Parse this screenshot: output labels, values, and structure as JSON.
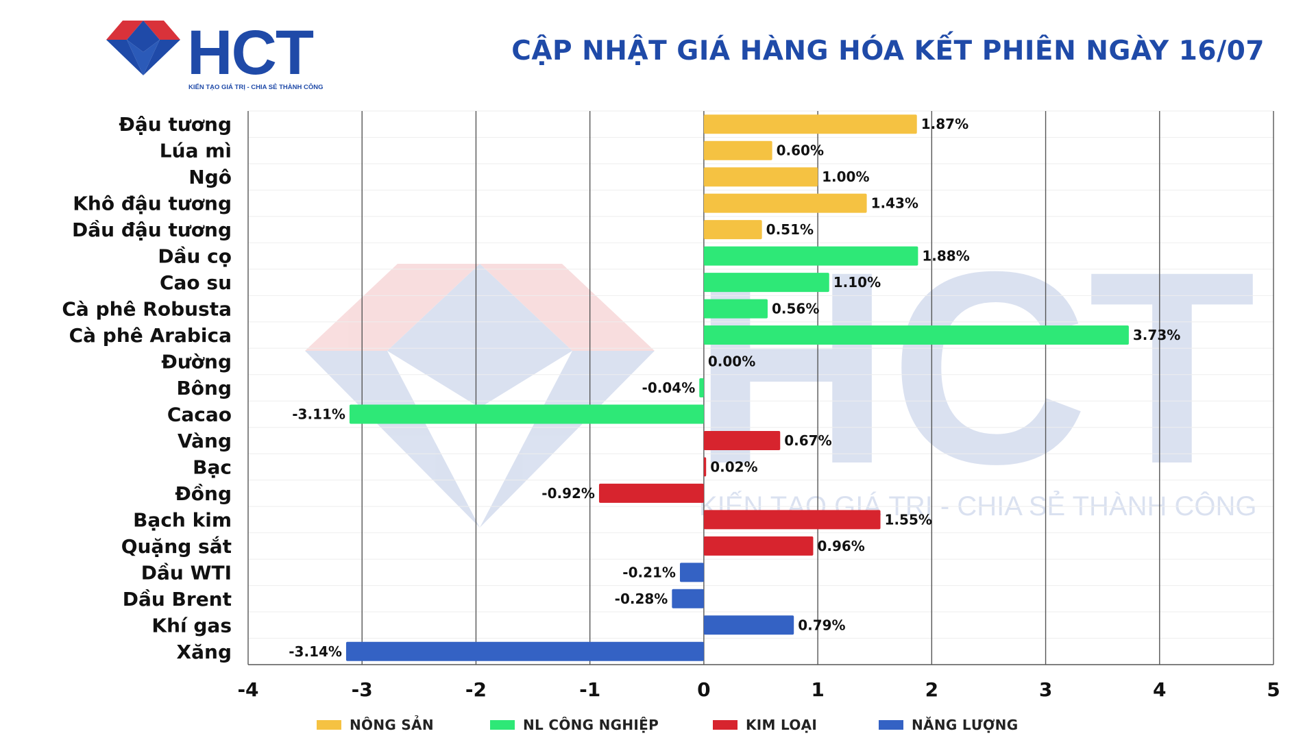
{
  "brand": {
    "logo_text": "HCT",
    "tagline": "KIẾN TẠO GIÁ TRỊ - CHIA SẺ THÀNH CÔNG",
    "logo_color": "#1f4aa8",
    "logo_accent": "#d9323a"
  },
  "header": {
    "title": "CẬP NHẬT GIÁ HÀNG HÓA KẾT PHIÊN NGÀY 16/07"
  },
  "watermark": {
    "text": "HCT",
    "tagline": "KIẾN TẠO GIÁ TRỊ - CHIA SẺ THÀNH CÔNG"
  },
  "chart_data": {
    "type": "bar",
    "orientation": "horizontal",
    "title": "",
    "xlabel": "",
    "ylabel": "",
    "xlim": [
      -4,
      5
    ],
    "xticks": [
      -4,
      -3,
      -2,
      -1,
      0,
      1,
      2,
      3,
      4,
      5
    ],
    "xtick_labels": [
      "-4",
      "-3",
      "-2",
      "-1",
      "0",
      "1",
      "2",
      "3",
      "4",
      "5"
    ],
    "grid": "vertical",
    "legend_position": "bottom",
    "groups": [
      {
        "name": "NÔNG SẢN",
        "color": "#f5c242"
      },
      {
        "name": "NL CÔNG NGHIỆP",
        "color": "#2ee877"
      },
      {
        "name": "KIM LOẠI",
        "color": "#d7242e"
      },
      {
        "name": "NĂNG LƯỢNG",
        "color": "#3462c4"
      }
    ],
    "categories": [
      "Đậu tương",
      "Lúa mì",
      "Ngô",
      "Khô đậu tương",
      "Dầu đậu tương",
      "Dầu cọ",
      "Cao su",
      "Cà phê Robusta",
      "Cà phê Arabica",
      "Đường",
      "Bông",
      "Cacao",
      "Vàng",
      "Bạc",
      "Đồng",
      "Bạch kim",
      "Quặng sắt",
      "Dầu WTI",
      "Dầu Brent",
      "Khí gas",
      "Xăng"
    ],
    "values": [
      1.87,
      0.6,
      1.0,
      1.43,
      0.51,
      1.88,
      1.1,
      0.56,
      3.73,
      0.0,
      -0.04,
      -3.11,
      0.67,
      0.02,
      -0.92,
      1.55,
      0.96,
      -0.21,
      -0.28,
      0.79,
      -3.14
    ],
    "value_labels": [
      "1.87%",
      "0.60%",
      "1.00%",
      "1.43%",
      "0.51%",
      "1.88%",
      "1.10%",
      "0.56%",
      "3.73%",
      "0.00%",
      "-0.04%",
      "-3.11%",
      "0.67%",
      "0.02%",
      "-0.92%",
      "1.55%",
      "0.96%",
      "-0.21%",
      "-0.28%",
      "0.79%",
      "-3.14%"
    ],
    "group_index": [
      0,
      0,
      0,
      0,
      0,
      1,
      1,
      1,
      1,
      1,
      1,
      1,
      2,
      2,
      2,
      2,
      2,
      3,
      3,
      3,
      3
    ]
  }
}
